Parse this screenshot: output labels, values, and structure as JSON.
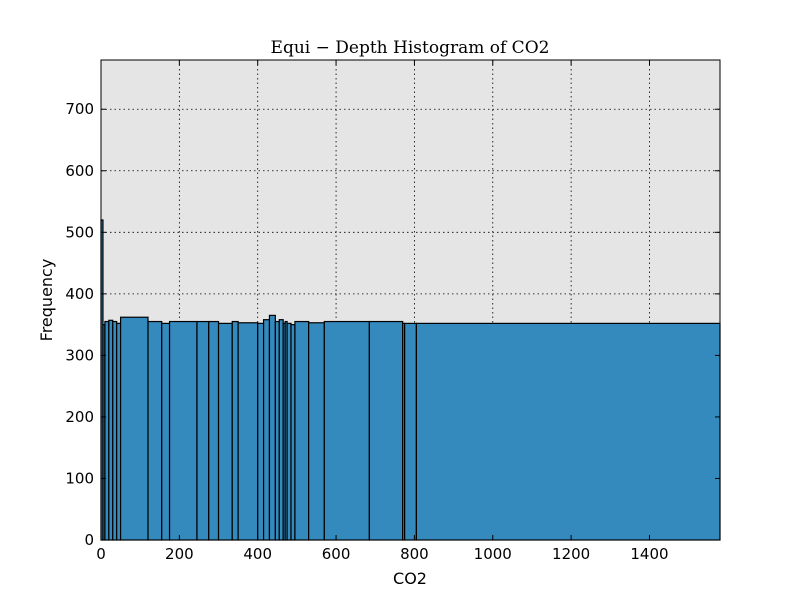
{
  "chart_data": {
    "type": "bar",
    "title": "Equi − Depth Histogram of CO2",
    "xlabel": "CO2",
    "ylabel": "Frequency",
    "xlim": [
      0,
      1580
    ],
    "ylim": [
      0,
      780
    ],
    "grid": true,
    "xticks": [
      "0",
      "200",
      "400",
      "600",
      "800",
      "1000",
      "1200",
      "1400"
    ],
    "xtick_values": [
      0,
      200,
      400,
      600,
      800,
      1000,
      1200,
      1400
    ],
    "yticks": [
      "0",
      "100",
      "200",
      "300",
      "400",
      "500",
      "600",
      "700"
    ],
    "ytick_values": [
      0,
      100,
      200,
      300,
      400,
      500,
      600,
      700
    ],
    "bin_edges": [
      0,
      5,
      10,
      20,
      30,
      40,
      50,
      120,
      155,
      175,
      245,
      275,
      300,
      335,
      350,
      400,
      415,
      430,
      445,
      455,
      465,
      470,
      475,
      485,
      495,
      530,
      570,
      685,
      770,
      775,
      805,
      1580
    ],
    "values": [
      520,
      350,
      355,
      357,
      355,
      352,
      362,
      355,
      352,
      355,
      355,
      355,
      352,
      355,
      353,
      352,
      358,
      365,
      355,
      358,
      352,
      355,
      352,
      350,
      355,
      353,
      355,
      355,
      352,
      352,
      352
    ],
    "colors": {
      "bar_fill": "#348abd",
      "bar_edge": "#000000",
      "plot_bg": "#e5e5e5",
      "grid": "#000000"
    }
  }
}
